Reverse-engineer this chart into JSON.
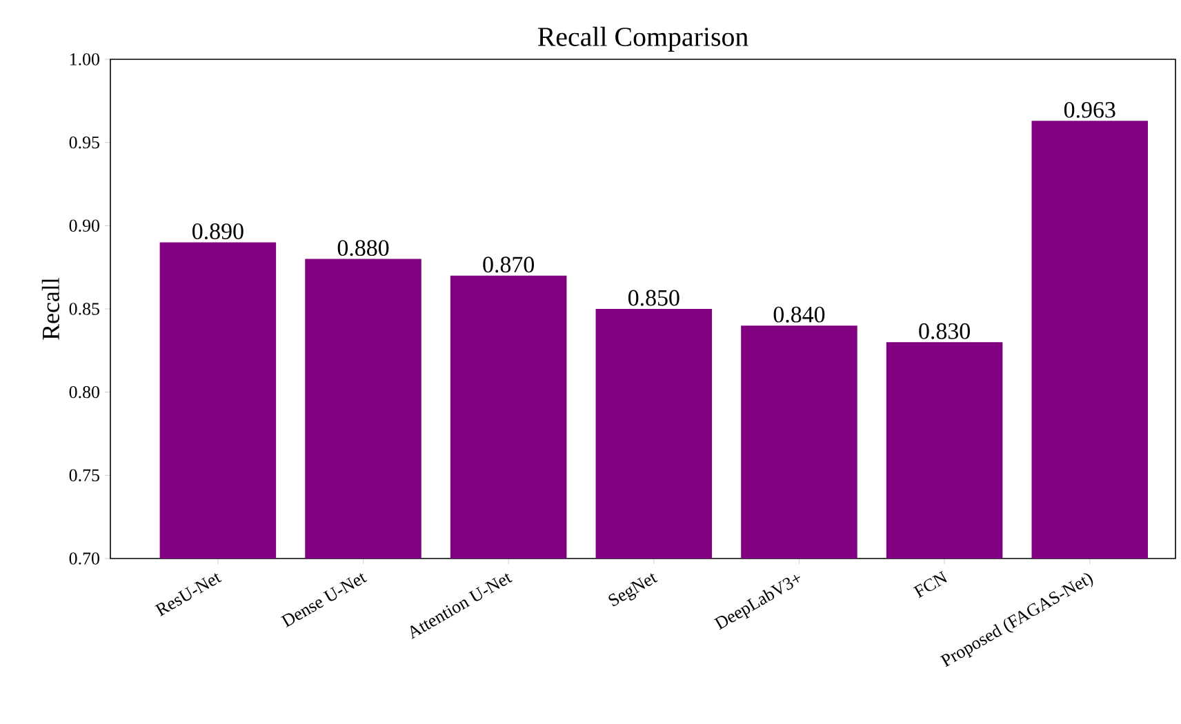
{
  "chart_data": {
    "type": "bar",
    "title": "Recall Comparison",
    "ylabel": "Recall",
    "categories": [
      "ResU-Net",
      "Dense U-Net",
      "Attention U-Net",
      "SegNet",
      "DeepLabV3+",
      "FCN",
      "Proposed (FAGAS-Net)"
    ],
    "values": [
      0.89,
      0.88,
      0.87,
      0.85,
      0.84,
      0.83,
      0.963
    ],
    "value_labels": [
      "0.890",
      "0.880",
      "0.870",
      "0.850",
      "0.840",
      "0.830",
      "0.963"
    ],
    "color": "#800080",
    "ylim": [
      0.7,
      1.0
    ],
    "yticks": [
      {
        "value": 0.7,
        "label": "0.70"
      },
      {
        "value": 0.75,
        "label": "0.75"
      },
      {
        "value": 0.8,
        "label": "0.80"
      },
      {
        "value": 0.85,
        "label": "0.85"
      },
      {
        "value": 0.9,
        "label": "0.90"
      },
      {
        "value": 0.95,
        "label": "0.95"
      },
      {
        "value": 1.0,
        "label": "1.00"
      }
    ],
    "grid": false
  }
}
